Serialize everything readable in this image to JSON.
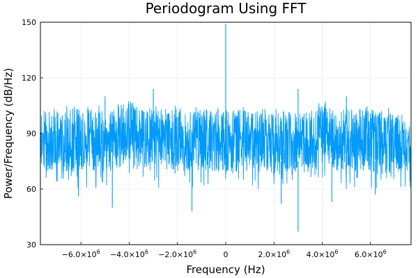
{
  "chart_data": {
    "type": "line",
    "title": "Periodogram Using FFT",
    "xlabel": "Frequency (Hz)",
    "ylabel": "Power/Frequency (dB/Hz)",
    "xlim": [
      -7680000,
      7680000
    ],
    "ylim": [
      30,
      150
    ],
    "grid": true,
    "legend": "none",
    "x_ticks": [
      {
        "value": -6000000,
        "mantissa": "−6.0×10",
        "exp": "6"
      },
      {
        "value": -4000000,
        "mantissa": "−4.0×10",
        "exp": "6"
      },
      {
        "value": -2000000,
        "mantissa": "−2.0×10",
        "exp": "6"
      },
      {
        "value": 0,
        "mantissa": "0",
        "exp": ""
      },
      {
        "value": 2000000,
        "mantissa": "2.0×10",
        "exp": "6"
      },
      {
        "value": 4000000,
        "mantissa": "4.0×10",
        "exp": "6"
      },
      {
        "value": 6000000,
        "mantissa": "6.0×10",
        "exp": "6"
      }
    ],
    "y_ticks": [
      30,
      60,
      90,
      120,
      150
    ],
    "series": [
      {
        "color": "#009AFA",
        "envelope_x_mhz": [
          -7.68,
          -7.0,
          -6.0,
          -5.5,
          -5.0,
          -4.6,
          -4.3,
          -4.0,
          -3.7,
          -3.4,
          -3.0,
          -2.6,
          -2.0,
          -1.0,
          -0.5,
          0.0,
          0.5,
          1.0,
          1.5,
          2.0,
          2.2,
          2.5,
          3.0,
          3.5,
          3.8,
          4.0,
          4.3,
          4.6,
          5.0,
          6.0,
          7.0,
          7.68
        ],
        "envelope_upper_db": [
          101,
          102,
          102,
          103,
          101,
          103,
          105,
          107,
          105,
          102,
          102,
          101,
          103,
          102,
          101,
          101,
          102,
          101,
          101,
          101,
          104,
          101,
          101,
          101,
          104,
          107,
          106,
          102,
          102,
          102,
          101,
          100
        ],
        "envelope_lower_db": [
          70,
          70,
          70,
          71,
          70,
          71,
          73,
          77,
          74,
          71,
          70,
          71,
          71,
          70,
          70,
          70,
          70,
          70,
          70,
          70,
          72,
          70,
          70,
          70,
          73,
          75,
          74,
          71,
          70,
          70,
          70,
          69
        ],
        "spikes": [
          {
            "x": 0,
            "y": 149
          },
          {
            "x": -3000000,
            "y": 114
          },
          {
            "x": 3000000,
            "y": 114
          },
          {
            "x": -5000000,
            "y": 110
          },
          {
            "x": 5000000,
            "y": 110
          },
          {
            "x": 3000000,
            "y": 37
          },
          {
            "x": -1400000,
            "y": 48
          },
          {
            "x": -4700000,
            "y": 50
          },
          {
            "x": 2300000,
            "y": 52
          },
          {
            "x": 4400000,
            "y": 53
          },
          {
            "x": -6100000,
            "y": 56
          },
          {
            "x": 6200000,
            "y": 57
          }
        ]
      }
    ]
  }
}
